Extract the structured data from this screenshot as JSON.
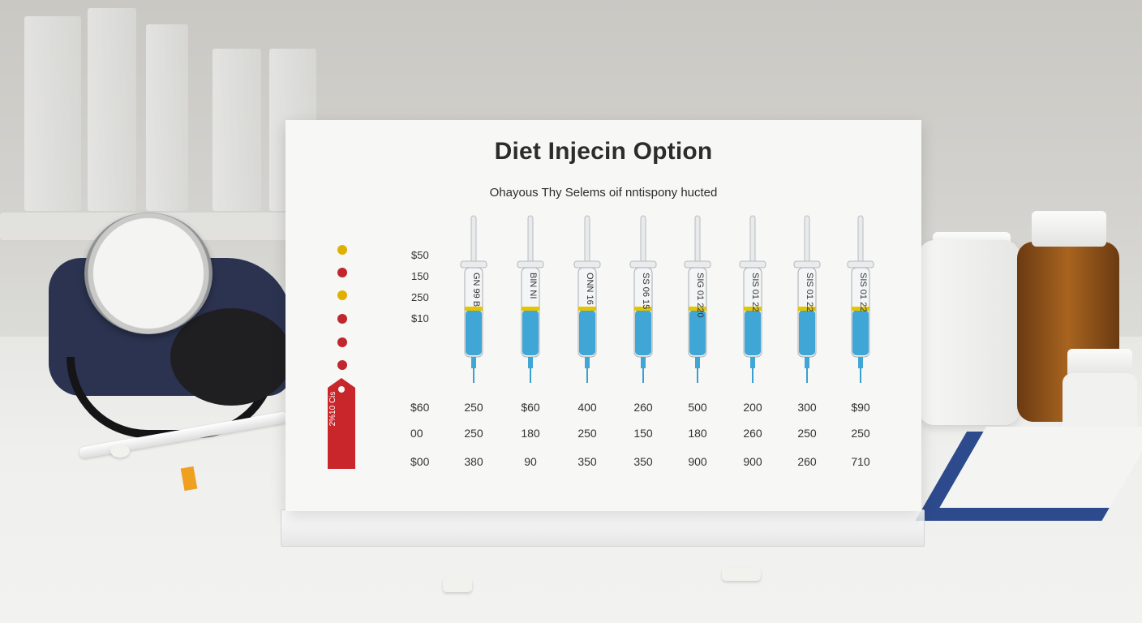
{
  "card": {
    "title": "Diet Injecin Option",
    "subtitle": "Ohayous Thy Selems oif nntispony hucted",
    "tag_text": "2%10 Cis"
  },
  "prices": [
    "$50",
    "150",
    "250",
    "$10"
  ],
  "rows": [
    {
      "label": "$60",
      "values": [
        "250",
        "$60",
        "400",
        "260",
        "500",
        "200",
        "300",
        "$90"
      ]
    },
    {
      "label": "00",
      "values": [
        "250",
        "180",
        "250",
        "150",
        "180",
        "260",
        "250",
        "250"
      ]
    },
    {
      "label": "$00",
      "values": [
        "380",
        "90",
        "350",
        "350",
        "900",
        "900",
        "260",
        "710"
      ]
    }
  ],
  "syringe_labels": [
    "GN 99 B",
    "BIN NI",
    "ONN 16",
    "SS 06 15",
    "SIG 01 220",
    "SIS 01 22",
    "SIS 01 22",
    "SIS 01 22"
  ],
  "dot_colors": [
    "#e0b000",
    "#c0262b",
    "#e0b000",
    "#c0262b",
    "#c0262b",
    "#c0262b"
  ],
  "accent": {
    "liquid": "#3fa6d6",
    "band": "#e5c400",
    "tag": "#c8262b"
  }
}
